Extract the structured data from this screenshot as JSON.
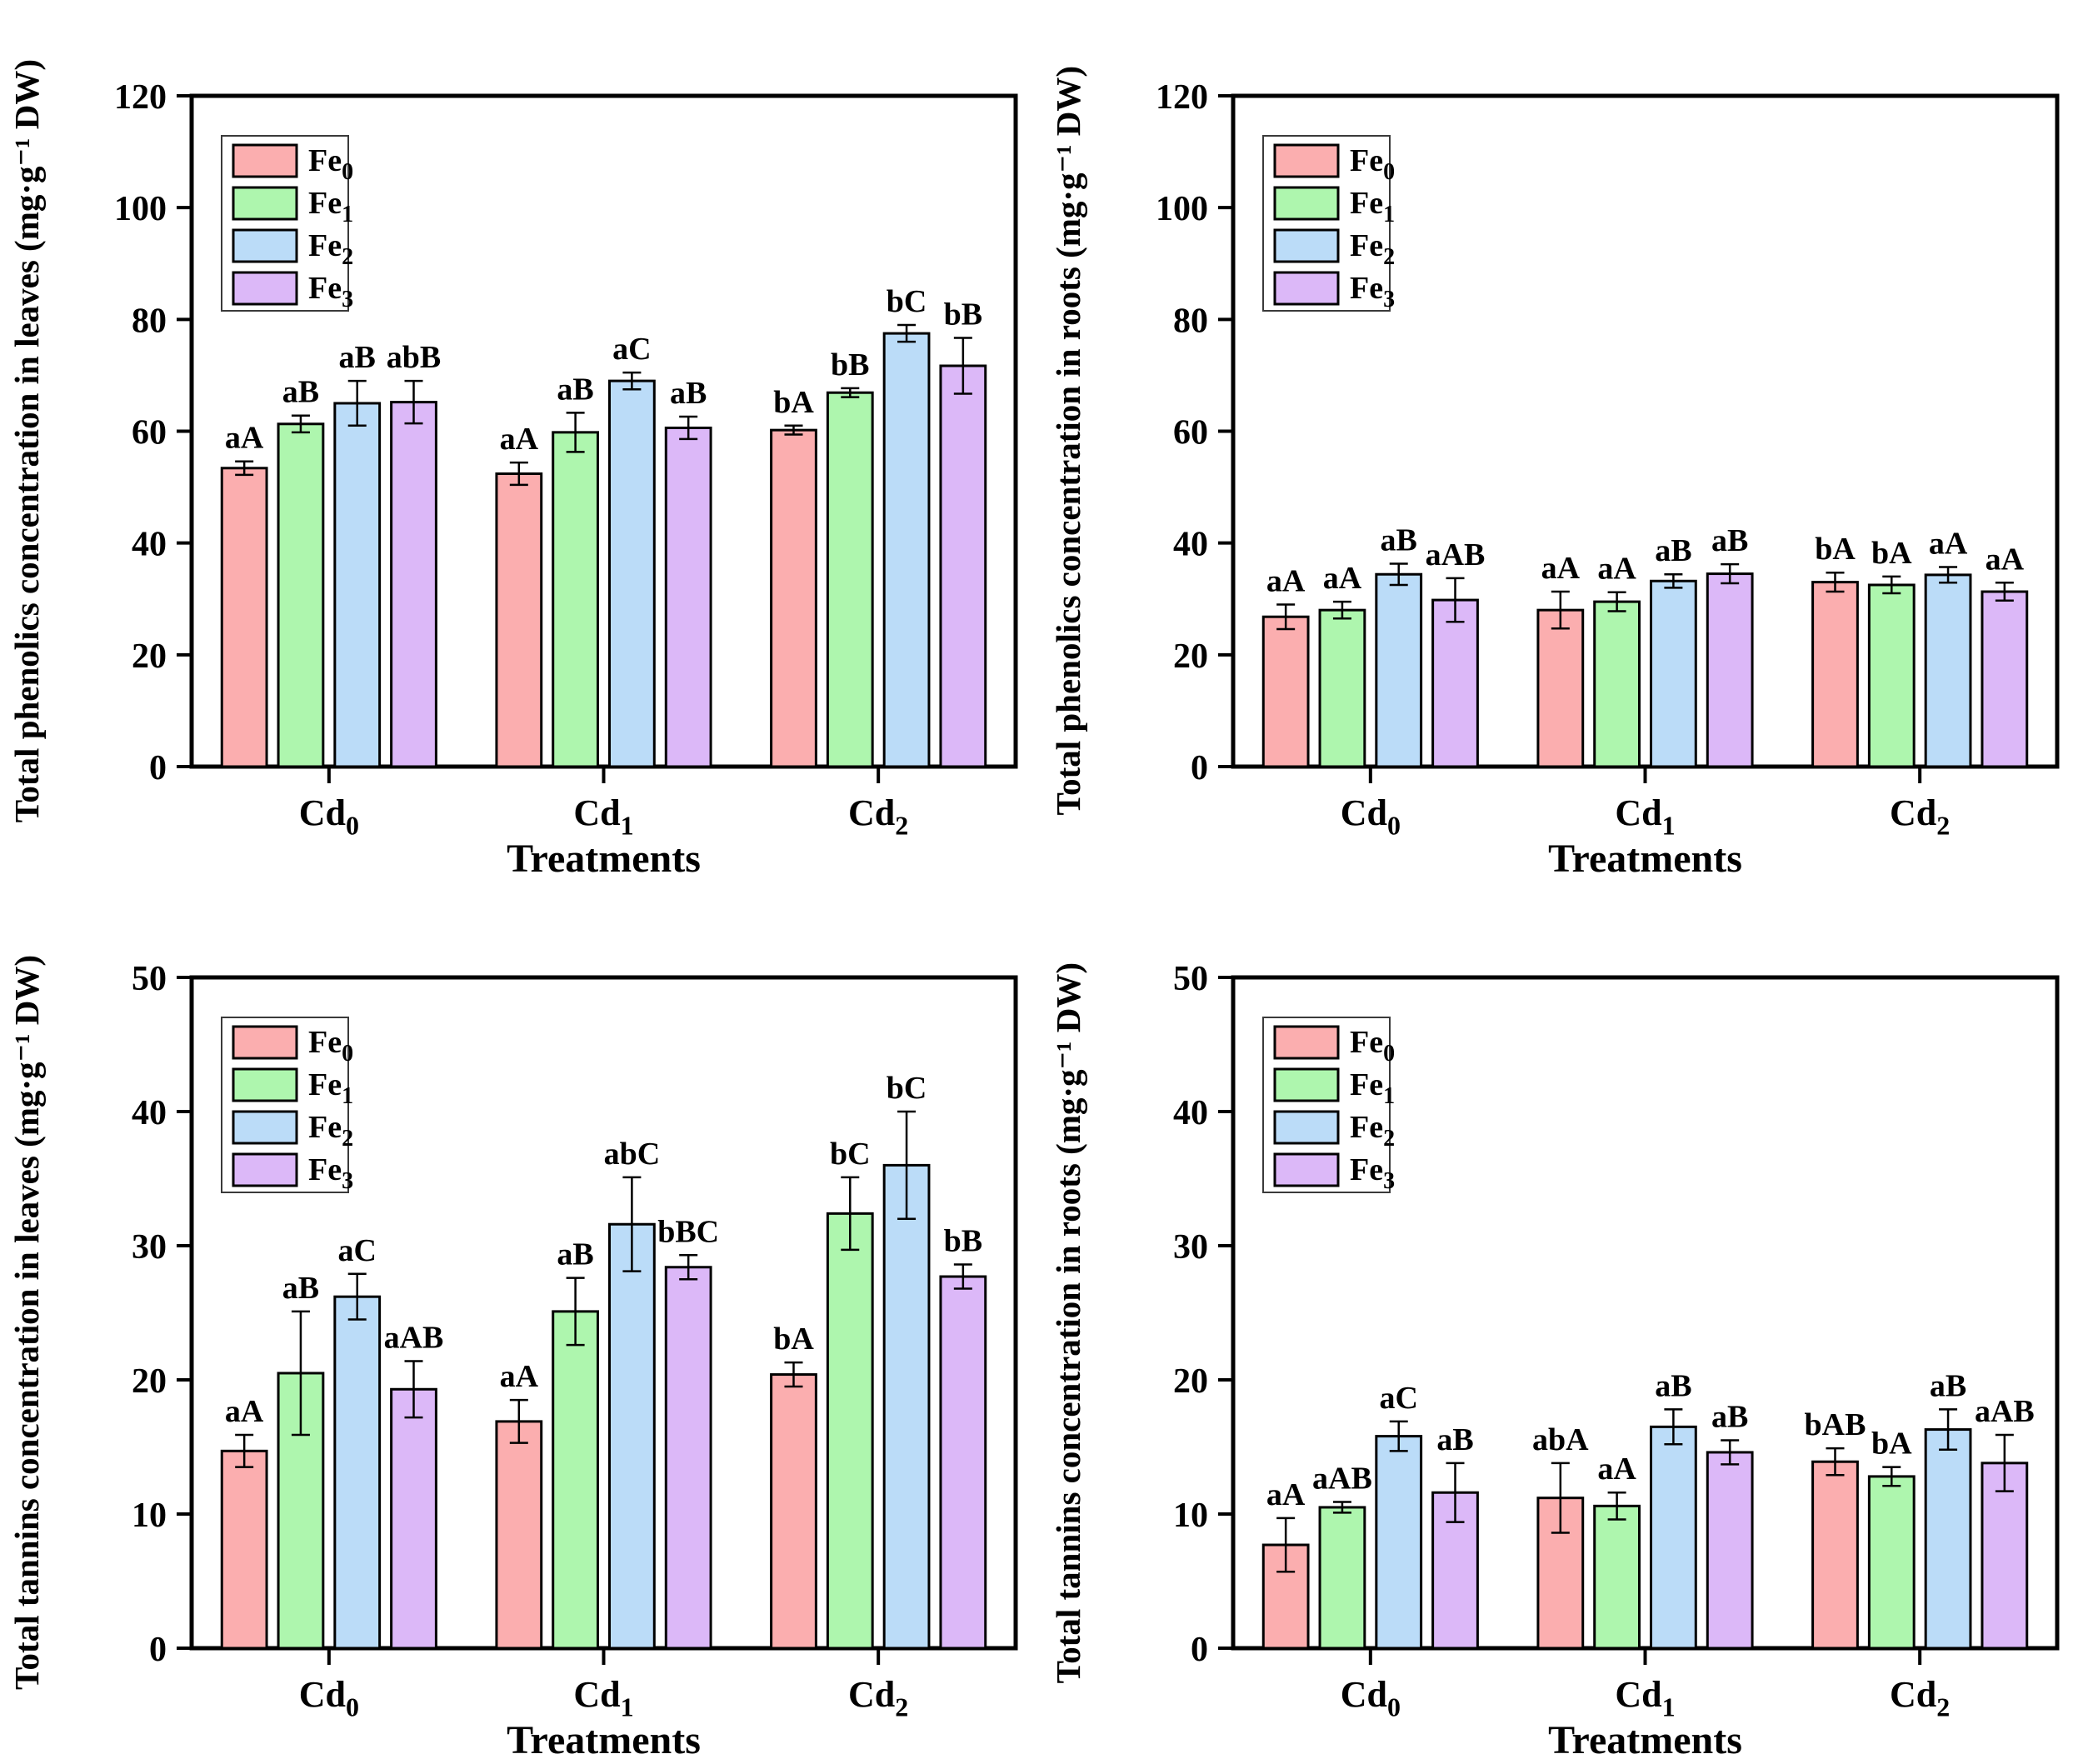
{
  "figure": {
    "xlabel": "Treatments",
    "legend_position": "upper-left",
    "legend": {
      "items": [
        {
          "name": "Fe0",
          "color": "#FBAEAF"
        },
        {
          "name": "Fe1",
          "color": "#AEF6AE"
        },
        {
          "name": "Fe2",
          "color": "#BBDCF8"
        },
        {
          "name": "Fe3",
          "color": "#DCB8F8"
        }
      ],
      "edge_color": "#000000"
    }
  },
  "chart_data": [
    {
      "type": "bar",
      "title": "",
      "ylabel": "Total phenolics concentration in leaves (mg·g⁻¹ DW)",
      "xlabel": "Treatments",
      "categories": [
        "Cd0",
        "Cd1",
        "Cd2"
      ],
      "ylim": [
        0,
        120
      ],
      "yticks": [
        0,
        20,
        40,
        60,
        80,
        100,
        120
      ],
      "grid": "off",
      "series": [
        {
          "name": "Fe0",
          "values": [
            53.4,
            52.4,
            60.2
          ],
          "errors": [
            1.2,
            2.0,
            0.8
          ],
          "labels": [
            "aA",
            "aA",
            "bA"
          ]
        },
        {
          "name": "Fe1",
          "values": [
            61.3,
            59.8,
            66.9
          ],
          "errors": [
            1.5,
            3.5,
            0.8
          ],
          "labels": [
            "aB",
            "aB",
            "bB"
          ]
        },
        {
          "name": "Fe2",
          "values": [
            65.0,
            69.0,
            77.5
          ],
          "errors": [
            4.0,
            1.5,
            1.5
          ],
          "labels": [
            "aB",
            "aC",
            "bC"
          ]
        },
        {
          "name": "Fe3",
          "values": [
            65.2,
            60.6,
            71.7
          ],
          "errors": [
            3.8,
            2.0,
            5.0
          ],
          "labels": [
            "abB",
            "aB",
            "bB"
          ]
        }
      ]
    },
    {
      "type": "bar",
      "title": "",
      "ylabel": "Total phenolics concentration in roots (mg·g⁻¹ DW)",
      "xlabel": "Treatments",
      "categories": [
        "Cd0",
        "Cd1",
        "Cd2"
      ],
      "ylim": [
        0,
        120
      ],
      "yticks": [
        0,
        20,
        40,
        60,
        80,
        100,
        120
      ],
      "grid": "off",
      "series": [
        {
          "name": "Fe0",
          "values": [
            26.8,
            28.0,
            33.0
          ],
          "errors": [
            2.2,
            3.3,
            1.7
          ],
          "labels": [
            "aA",
            "aA",
            "bA"
          ]
        },
        {
          "name": "Fe1",
          "values": [
            28.0,
            29.5,
            32.5
          ],
          "errors": [
            1.5,
            1.7,
            1.5
          ],
          "labels": [
            "aA",
            "aA",
            "bA"
          ]
        },
        {
          "name": "Fe2",
          "values": [
            34.4,
            33.2,
            34.3
          ],
          "errors": [
            1.9,
            1.2,
            1.4
          ],
          "labels": [
            "aB",
            "aB",
            "aA"
          ]
        },
        {
          "name": "Fe3",
          "values": [
            29.8,
            34.5,
            31.3
          ],
          "errors": [
            3.9,
            1.7,
            1.6
          ],
          "labels": [
            "aAB",
            "aB",
            "aA"
          ]
        }
      ]
    },
    {
      "type": "bar",
      "title": "",
      "ylabel": "Total tannins concentration in leaves (mg·g⁻¹ DW)",
      "xlabel": "Treatments",
      "categories": [
        "Cd0",
        "Cd1",
        "Cd2"
      ],
      "ylim": [
        0,
        50
      ],
      "yticks": [
        0,
        10,
        20,
        30,
        40,
        50
      ],
      "grid": "off",
      "series": [
        {
          "name": "Fe0",
          "values": [
            14.7,
            16.9,
            20.4
          ],
          "errors": [
            1.2,
            1.6,
            0.9
          ],
          "labels": [
            "aA",
            "aA",
            "bA"
          ]
        },
        {
          "name": "Fe1",
          "values": [
            20.5,
            25.1,
            32.4
          ],
          "errors": [
            4.6,
            2.5,
            2.7
          ],
          "labels": [
            "aB",
            "aB",
            "bC"
          ]
        },
        {
          "name": "Fe2",
          "values": [
            26.2,
            31.6,
            36.0
          ],
          "errors": [
            1.7,
            3.5,
            4.0
          ],
          "labels": [
            "aC",
            "abC",
            "bC"
          ]
        },
        {
          "name": "Fe3",
          "values": [
            19.3,
            28.4,
            27.7
          ],
          "errors": [
            2.1,
            0.9,
            0.9
          ],
          "labels": [
            "aAB",
            "bBC",
            "bB"
          ]
        }
      ]
    },
    {
      "type": "bar",
      "title": "",
      "ylabel": "Total tannins concentration in roots (mg·g⁻¹ DW)",
      "xlabel": "Treatments",
      "categories": [
        "Cd0",
        "Cd1",
        "Cd2"
      ],
      "ylim": [
        0,
        50
      ],
      "yticks": [
        0,
        10,
        20,
        30,
        40,
        50
      ],
      "grid": "off",
      "series": [
        {
          "name": "Fe0",
          "values": [
            7.7,
            11.2,
            13.9
          ],
          "errors": [
            2.0,
            2.6,
            1.0
          ],
          "labels": [
            "aA",
            "abA",
            "bAB"
          ]
        },
        {
          "name": "Fe1",
          "values": [
            10.5,
            10.6,
            12.8
          ],
          "errors": [
            0.4,
            1.0,
            0.7
          ],
          "labels": [
            "aAB",
            "aA",
            "bA"
          ]
        },
        {
          "name": "Fe2",
          "values": [
            15.8,
            16.5,
            16.3
          ],
          "errors": [
            1.1,
            1.3,
            1.5
          ],
          "labels": [
            "aC",
            "aB",
            "aB"
          ]
        },
        {
          "name": "Fe3",
          "values": [
            11.6,
            14.6,
            13.8
          ],
          "errors": [
            2.2,
            0.9,
            2.1
          ],
          "labels": [
            "aB",
            "aB",
            "aAB"
          ]
        }
      ]
    }
  ]
}
